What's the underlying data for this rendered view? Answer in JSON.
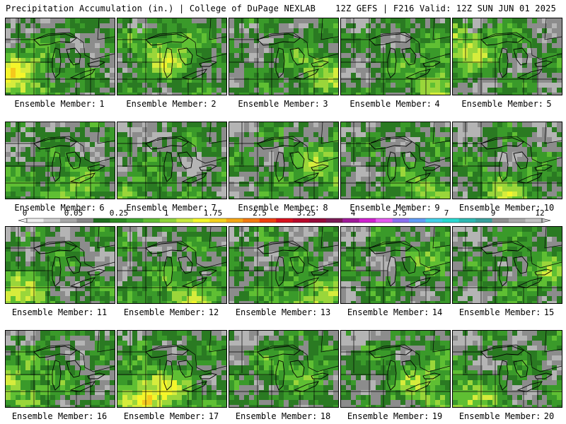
{
  "header": {
    "left_title": "Precipitation Accumulation (in.) | College of DuPage NEXLAB",
    "right_title": "12Z GEFS | F216 Valid: 12Z SUN JUN 01 2025"
  },
  "caption_prefix": "Ensemble Member:",
  "members": [
    {
      "number": "1",
      "wet": 0.75,
      "seed": 11,
      "hot": [
        0.05,
        0.72
      ]
    },
    {
      "number": "2",
      "wet": 0.55,
      "seed": 23,
      "hot": [
        0.42,
        0.45
      ]
    },
    {
      "number": "3",
      "wet": 0.5,
      "seed": 37,
      "hot": [
        0.85,
        0.65
      ]
    },
    {
      "number": "4",
      "wet": 0.5,
      "seed": 41,
      "hot": [
        0.9,
        0.75
      ]
    },
    {
      "number": "5",
      "wet": 0.62,
      "seed": 53,
      "hot": [
        0.08,
        0.32
      ]
    },
    {
      "number": "6",
      "wet": 0.45,
      "seed": 67,
      "hot": [
        0.55,
        0.85
      ]
    },
    {
      "number": "7",
      "wet": 0.3,
      "seed": 71,
      "hot": [
        0.15,
        0.95
      ]
    },
    {
      "number": "8",
      "wet": 0.45,
      "seed": 83,
      "hot": [
        0.88,
        0.55
      ]
    },
    {
      "number": "9",
      "wet": 0.45,
      "seed": 97,
      "hot": [
        0.8,
        0.92
      ]
    },
    {
      "number": "10",
      "wet": 0.5,
      "seed": 101,
      "hot": [
        0.5,
        0.95
      ]
    },
    {
      "number": "11",
      "wet": 0.58,
      "seed": 113,
      "hot": [
        0.05,
        0.85
      ]
    },
    {
      "number": "12",
      "wet": 0.58,
      "seed": 127,
      "hot": [
        0.6,
        0.95
      ]
    },
    {
      "number": "13",
      "wet": 0.5,
      "seed": 131,
      "hot": [
        0.75,
        0.9
      ]
    },
    {
      "number": "14",
      "wet": 0.3,
      "seed": 149,
      "hot": [
        0.9,
        0.3
      ]
    },
    {
      "number": "15",
      "wet": 0.35,
      "seed": 157,
      "hot": [
        0.85,
        0.55
      ]
    },
    {
      "number": "16",
      "wet": 0.5,
      "seed": 163,
      "hot": [
        0.1,
        0.7
      ]
    },
    {
      "number": "17",
      "wet": 0.85,
      "seed": 173,
      "hot": [
        0.3,
        0.8
      ]
    },
    {
      "number": "18",
      "wet": 0.35,
      "seed": 181,
      "hot": [
        0.6,
        0.5
      ]
    },
    {
      "number": "19",
      "wet": 0.5,
      "seed": 191,
      "hot": [
        0.8,
        0.65
      ]
    },
    {
      "number": "20",
      "wet": 0.5,
      "seed": 197,
      "hot": [
        0.08,
        0.88
      ]
    }
  ],
  "colorbar": {
    "labels": [
      "0",
      "0.05",
      "0.25",
      "1",
      "1.75",
      "2.5",
      "3.25",
      "4",
      "5.5",
      "7",
      "9",
      "12"
    ],
    "colors": [
      "#eeeeee",
      "#cccccc",
      "#a8a8a8",
      "#888888",
      "#1e6e1e",
      "#2d8a23",
      "#3fa52e",
      "#62bf34",
      "#8fd43a",
      "#c8e83e",
      "#f3f72a",
      "#f5d21d",
      "#f5a615",
      "#f27a10",
      "#ef3f10",
      "#d8101e",
      "#b8082a",
      "#960a3a",
      "#7a1a55",
      "#a01a9a",
      "#d020d0",
      "#e45af0",
      "#8a6ef0",
      "#5f9cf5",
      "#42cfe8",
      "#28d8d0",
      "#2eb8b2",
      "#3aa09c",
      "#909090",
      "#aaaaaa",
      "#c4c4c4"
    ]
  }
}
